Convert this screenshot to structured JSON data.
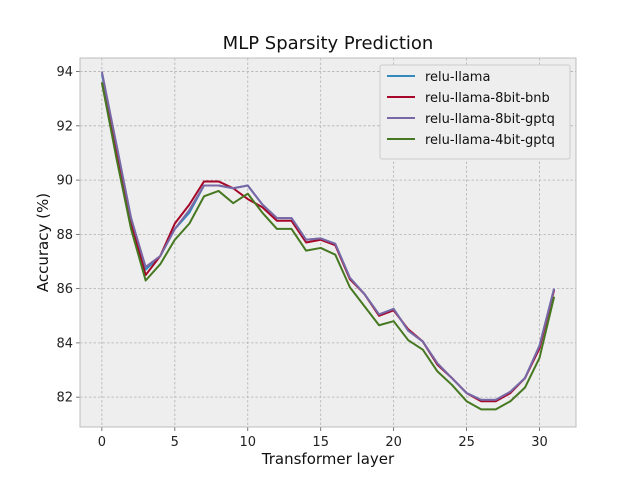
{
  "chart_data": {
    "type": "line",
    "title": "MLP Sparsity Prediction",
    "xlabel": "Transformer layer",
    "ylabel": "Accuracy (%)",
    "xlim": [
      -1.5,
      32.5
    ],
    "ylim": [
      80.9,
      94.5
    ],
    "xticks": [
      0,
      5,
      10,
      15,
      20,
      25,
      30
    ],
    "yticks": [
      82,
      84,
      86,
      88,
      90,
      92,
      94
    ],
    "grid": true,
    "legend_position": "top-right",
    "x": [
      0,
      1,
      2,
      3,
      4,
      5,
      6,
      7,
      8,
      9,
      10,
      11,
      12,
      13,
      14,
      15,
      16,
      17,
      18,
      19,
      20,
      21,
      22,
      23,
      24,
      25,
      26,
      27,
      28,
      29,
      30,
      31
    ],
    "series": [
      {
        "name": "relu-llama",
        "color": "#348ABD",
        "values": [
          93.9,
          91.3,
          88.6,
          86.7,
          87.2,
          88.2,
          88.8,
          89.8,
          89.8,
          89.7,
          89.8,
          89.1,
          88.6,
          88.6,
          87.8,
          87.85,
          87.65,
          86.4,
          85.8,
          85.05,
          85.25,
          84.45,
          84.05,
          83.2,
          82.7,
          82.15,
          81.9,
          81.9,
          82.2,
          82.7,
          83.9,
          86.0
        ]
      },
      {
        "name": "relu-llama-8bit-bnb",
        "color": "#A60628",
        "values": [
          93.6,
          91.0,
          88.4,
          86.5,
          87.2,
          88.4,
          89.1,
          89.95,
          89.95,
          89.7,
          89.3,
          89.0,
          88.5,
          88.5,
          87.7,
          87.8,
          87.6,
          86.35,
          85.8,
          85.0,
          85.2,
          84.5,
          84.05,
          83.2,
          82.7,
          82.15,
          81.85,
          81.85,
          82.15,
          82.7,
          83.8,
          85.95
        ]
      },
      {
        "name": "relu-llama-8bit-gptq",
        "color": "#7A68A6",
        "values": [
          94.0,
          91.3,
          88.6,
          86.8,
          87.2,
          88.2,
          88.9,
          89.8,
          89.8,
          89.7,
          89.8,
          89.1,
          88.6,
          88.6,
          87.8,
          87.85,
          87.65,
          86.4,
          85.8,
          85.05,
          85.25,
          84.45,
          84.05,
          83.25,
          82.7,
          82.15,
          81.9,
          81.9,
          82.2,
          82.7,
          83.9,
          86.0
        ]
      },
      {
        "name": "relu-llama-4bit-gptq",
        "color": "#467821",
        "values": [
          93.6,
          90.8,
          88.2,
          86.3,
          86.9,
          87.8,
          88.4,
          89.4,
          89.6,
          89.15,
          89.5,
          88.8,
          88.2,
          88.2,
          87.4,
          87.5,
          87.25,
          86.05,
          85.35,
          84.65,
          84.8,
          84.1,
          83.75,
          82.95,
          82.45,
          81.85,
          81.55,
          81.55,
          81.85,
          82.35,
          83.45,
          85.7
        ]
      }
    ]
  }
}
